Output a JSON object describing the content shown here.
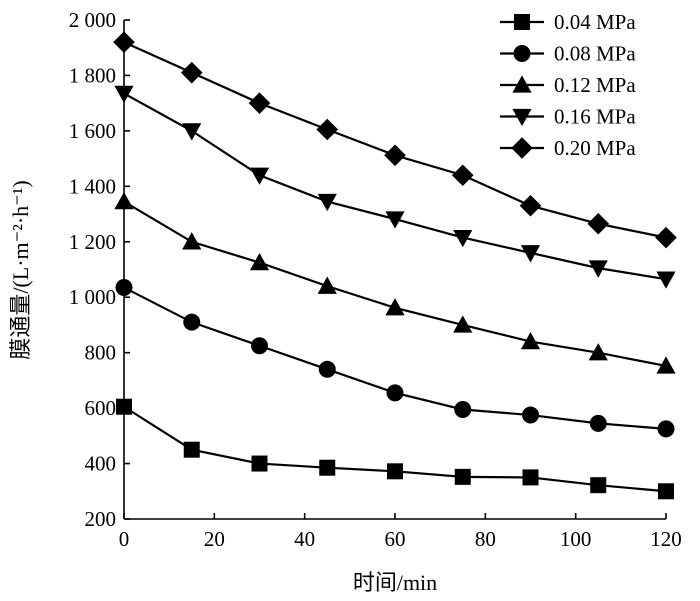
{
  "chart_data": {
    "type": "line",
    "xlabel": "时间/min",
    "ylabel": "膜通量/(L·m⁻²·h⁻¹)",
    "xlim": [
      0,
      120
    ],
    "ylim": [
      200,
      2000
    ],
    "x_ticks": [
      0,
      20,
      40,
      60,
      80,
      100,
      120
    ],
    "x_tick_labels": [
      "0",
      "20",
      "40",
      "60",
      "80",
      "100",
      "120"
    ],
    "y_ticks": [
      200,
      400,
      600,
      800,
      1000,
      1200,
      1400,
      1600,
      1800,
      2000
    ],
    "y_tick_labels": [
      "200",
      "400",
      "600",
      "800",
      "1 000",
      "1 200",
      "1 400",
      "1 600",
      "1 800",
      "2 000"
    ],
    "grid": false,
    "legend_position": "top-right",
    "x": [
      0,
      15,
      30,
      45,
      60,
      75,
      90,
      105,
      120
    ],
    "series": [
      {
        "name": "0.04 MPa",
        "marker": "square",
        "values": [
          605,
          450,
          400,
          385,
          372,
          352,
          350,
          322,
          300
        ]
      },
      {
        "name": "0.08 MPa",
        "marker": "circle",
        "values": [
          1035,
          910,
          825,
          740,
          655,
          595,
          575,
          545,
          525
        ]
      },
      {
        "name": "0.12 MPa",
        "marker": "triangle-up",
        "values": [
          1345,
          1200,
          1125,
          1040,
          962,
          900,
          840,
          800,
          752
        ]
      },
      {
        "name": "0.16 MPa",
        "marker": "triangle-down",
        "values": [
          1735,
          1600,
          1440,
          1345,
          1282,
          1215,
          1160,
          1105,
          1065
        ]
      },
      {
        "name": "0.20 MPa",
        "marker": "diamond",
        "values": [
          1920,
          1810,
          1700,
          1605,
          1512,
          1440,
          1330,
          1265,
          1215
        ]
      }
    ]
  }
}
